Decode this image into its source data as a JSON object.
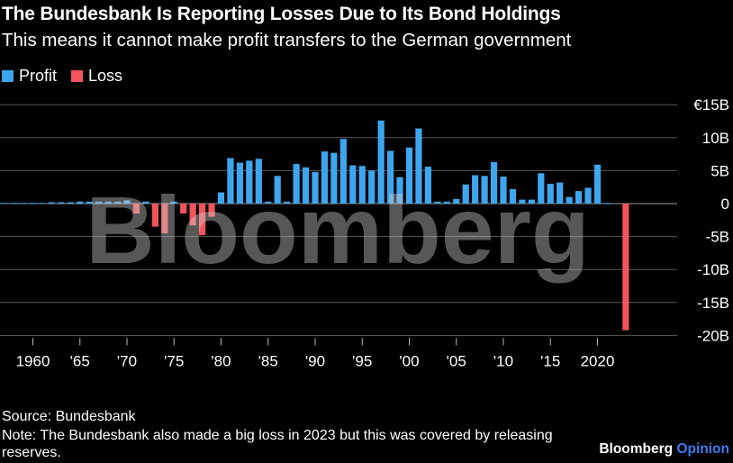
{
  "header": {
    "title": "The Bundesbank Is Reporting Losses Due to Its Bond Holdings",
    "subtitle": "This means it cannot make profit transfers to the German government"
  },
  "legend": [
    {
      "label": "Profit",
      "color": "#3ea6ef"
    },
    {
      "label": "Loss",
      "color": "#f2545b"
    }
  ],
  "watermark": "Bloomberg",
  "chart_data": {
    "type": "bar",
    "title": "The Bundesbank Is Reporting Losses Due to Its Bond Holdings",
    "subtitle": "This means it cannot make profit transfers to the German government",
    "xlabel": "",
    "ylabel": "",
    "ylim": [
      -20,
      15
    ],
    "grid": true,
    "legend_position": "top-left",
    "y_ticks": [
      {
        "value": 15,
        "label": "€15B"
      },
      {
        "value": 10,
        "label": "10B"
      },
      {
        "value": 5,
        "label": "5B"
      },
      {
        "value": 0,
        "label": "0"
      },
      {
        "value": -5,
        "label": "-5B"
      },
      {
        "value": -10,
        "label": "-10B"
      },
      {
        "value": -15,
        "label": "-15B"
      },
      {
        "value": -20,
        "label": "-20B"
      }
    ],
    "x_ticks": [
      {
        "year": 1960,
        "label": "1960"
      },
      {
        "year": 1965,
        "label": "'65"
      },
      {
        "year": 1970,
        "label": "'70"
      },
      {
        "year": 1975,
        "label": "'75"
      },
      {
        "year": 1980,
        "label": "'80"
      },
      {
        "year": 1985,
        "label": "'85"
      },
      {
        "year": 1990,
        "label": "'90"
      },
      {
        "year": 1995,
        "label": "'95"
      },
      {
        "year": 2000,
        "label": "'00"
      },
      {
        "year": 2005,
        "label": "'05"
      },
      {
        "year": 2010,
        "label": "'10"
      },
      {
        "year": 2015,
        "label": "'15"
      },
      {
        "year": 2020,
        "label": "2020"
      }
    ],
    "series": [
      {
        "name": "Profit",
        "color": "#3ea6ef",
        "x": [
          1957,
          1958,
          1959,
          1960,
          1961,
          1962,
          1963,
          1964,
          1965,
          1966,
          1967,
          1968,
          1969,
          1970,
          1972,
          1975,
          1980,
          1981,
          1982,
          1983,
          1984,
          1985,
          1986,
          1987,
          1988,
          1989,
          1990,
          1991,
          1992,
          1993,
          1994,
          1995,
          1996,
          1997,
          1998,
          1999,
          2000,
          2001,
          2002,
          2003,
          2004,
          2005,
          2006,
          2007,
          2008,
          2009,
          2010,
          2011,
          2012,
          2013,
          2014,
          2015,
          2016,
          2017,
          2018,
          2019,
          2020,
          2021
        ],
        "values": [
          0.1,
          0.1,
          0.1,
          0.1,
          0.1,
          0.2,
          0.2,
          0.2,
          0.3,
          0.3,
          0.3,
          0.3,
          0.3,
          0.5,
          0.3,
          0.3,
          1.7,
          6.9,
          6.2,
          6.5,
          6.8,
          0.3,
          4.2,
          0.3,
          6.0,
          5.5,
          4.8,
          7.9,
          7.7,
          9.8,
          5.8,
          5.7,
          5.0,
          12.6,
          8.0,
          4.0,
          8.5,
          11.4,
          5.6,
          0.3,
          0.3,
          0.7,
          2.9,
          4.3,
          4.2,
          6.3,
          4.1,
          2.2,
          0.6,
          0.6,
          4.6,
          3.0,
          3.2,
          1.0,
          1.9,
          2.4,
          5.9,
          0.1
        ]
      },
      {
        "name": "Loss",
        "color": "#f2545b",
        "x": [
          1971,
          1973,
          1974,
          1976,
          1977,
          1978,
          1979,
          2023
        ],
        "values": [
          -1.5,
          -3.5,
          -4.5,
          -1.5,
          -3.3,
          -4.8,
          -2.0,
          -19.2
        ]
      }
    ]
  },
  "footer": {
    "source": "Source: Bundesbank",
    "note": "Note: The Bundesbank also made a big loss in 2023 but this was covered by releasing reserves.",
    "brand_main": "Bloomberg",
    "brand_accent": "Opinion"
  }
}
